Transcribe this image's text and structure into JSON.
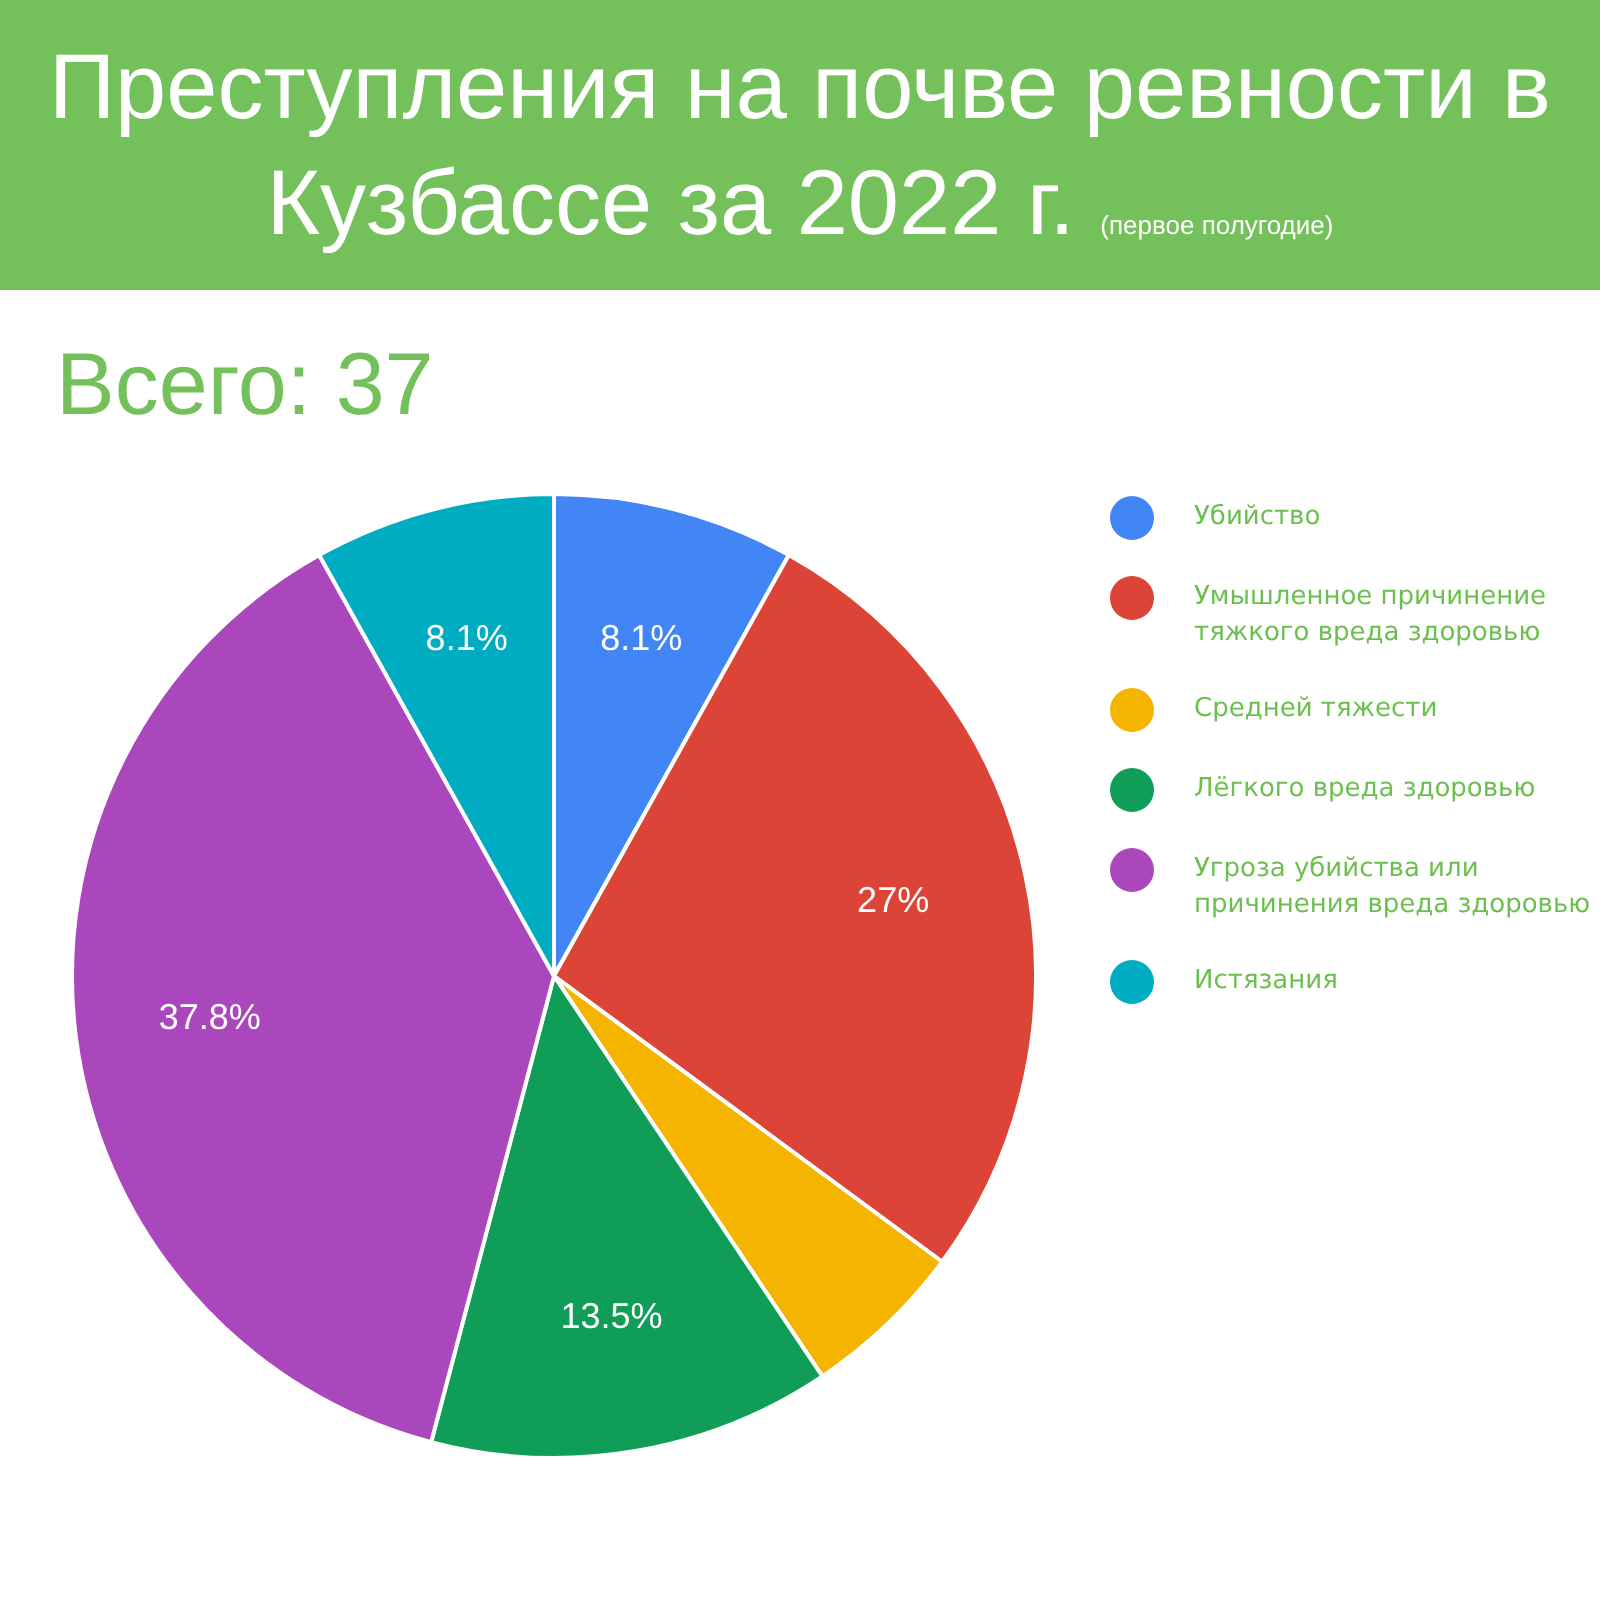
{
  "chart_data": {
    "type": "pie",
    "title": "Преступления на почве ревности в Кузбассе за 2022 г.",
    "subtitle": "(первое полугодие)",
    "annotations": [
      "Всего: 37"
    ],
    "categories": [
      "Убийство",
      "Умышленное причинение тяжкого вреда здоровью",
      "Средней тяжести",
      "Лёгкого вреда здоровью",
      "Угроза убийства или причинения вреда здоровью",
      "Истязания"
    ],
    "values": [
      8.1,
      27,
      5.5,
      13.5,
      37.8,
      8.1
    ],
    "colors": [
      "#4285f4",
      "#db4437",
      "#f4b400",
      "#0f9d58",
      "#ab47bc",
      "#00acc1"
    ],
    "value_labels": [
      "8.1%",
      "27%",
      null,
      "13.5%",
      "37.8%",
      "8.1%"
    ],
    "legend": "right"
  }
}
